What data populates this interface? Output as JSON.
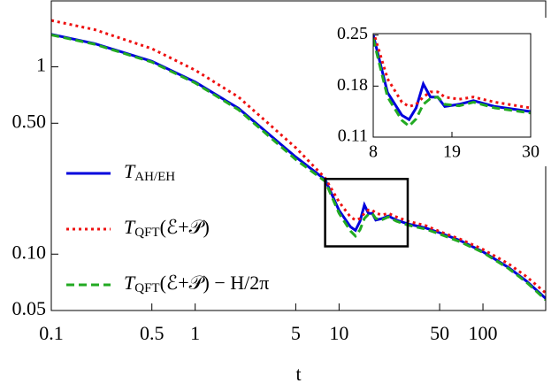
{
  "chart_data": [
    {
      "type": "line",
      "xscale": "log",
      "yscale": "log",
      "xlabel": "t",
      "xlim": [
        0.1,
        273
      ],
      "ylim": [
        0.05,
        2.25
      ],
      "xticks": [
        0.1,
        0.5,
        1,
        5,
        10,
        50,
        100
      ],
      "yticks": [
        0.05,
        {
          "value": 0.1,
          "label": "0.10"
        },
        {
          "value": 0.5,
          "label": "0.50"
        },
        1
      ],
      "legend": "left",
      "x": [
        0.1,
        0.2,
        0.5,
        1,
        2,
        5,
        8,
        10,
        12,
        13,
        14,
        15,
        16,
        17,
        18,
        20,
        22,
        25,
        30,
        40,
        50,
        70,
        100,
        150,
        200,
        273
      ],
      "series": [
        {
          "name": "TAH/EH",
          "color": "#0000dd",
          "dash": "solid",
          "values": [
            1.49,
            1.33,
            1.07,
            0.83,
            0.6,
            0.33,
            0.25,
            0.171,
            0.14,
            0.134,
            0.15,
            0.183,
            0.165,
            0.165,
            0.152,
            0.155,
            0.16,
            0.152,
            0.145,
            0.138,
            0.13,
            0.118,
            0.103,
            0.085,
            0.072,
            0.058
          ]
        },
        {
          "name": "TQFT(ℰ+𝒫)",
          "color": "#ee1111",
          "dash": "dot",
          "values": [
            1.77,
            1.58,
            1.25,
            0.96,
            0.69,
            0.37,
            0.255,
            0.19,
            0.158,
            0.152,
            0.155,
            0.165,
            0.172,
            0.172,
            0.165,
            0.162,
            0.165,
            0.158,
            0.15,
            0.142,
            0.132,
            0.12,
            0.106,
            0.089,
            0.076,
            0.062
          ]
        },
        {
          "name": "TQFT(ℰ+𝒫) − H/2π",
          "color": "#22aa22",
          "dash": "dash",
          "values": [
            1.48,
            1.32,
            1.06,
            0.82,
            0.59,
            0.32,
            0.245,
            0.165,
            0.133,
            0.125,
            0.135,
            0.155,
            0.163,
            0.165,
            0.155,
            0.153,
            0.158,
            0.15,
            0.143,
            0.136,
            0.128,
            0.116,
            0.102,
            0.084,
            0.071,
            0.057
          ]
        }
      ]
    },
    {
      "type": "line",
      "xscale": "linear",
      "yscale": "linear",
      "xlim": [
        8,
        30
      ],
      "ylim": [
        0.11,
        0.252
      ],
      "xticks": [
        8,
        19,
        30
      ],
      "yticks": [
        0.11,
        0.18,
        0.25
      ],
      "x": [
        8,
        10,
        12,
        13,
        14,
        15,
        16,
        17,
        18,
        20,
        22,
        25,
        30
      ],
      "series": [
        {
          "color": "#0000dd",
          "dash": "solid",
          "values": [
            0.25,
            0.171,
            0.14,
            0.134,
            0.15,
            0.183,
            0.165,
            0.165,
            0.152,
            0.155,
            0.16,
            0.152,
            0.145
          ]
        },
        {
          "color": "#ee1111",
          "dash": "dot",
          "values": [
            0.255,
            0.19,
            0.158,
            0.152,
            0.155,
            0.165,
            0.172,
            0.172,
            0.165,
            0.162,
            0.165,
            0.158,
            0.15
          ]
        },
        {
          "color": "#22aa22",
          "dash": "dash",
          "values": [
            0.245,
            0.165,
            0.133,
            0.125,
            0.135,
            0.155,
            0.163,
            0.165,
            0.155,
            0.153,
            0.158,
            0.15,
            0.143
          ]
        }
      ]
    }
  ]
}
